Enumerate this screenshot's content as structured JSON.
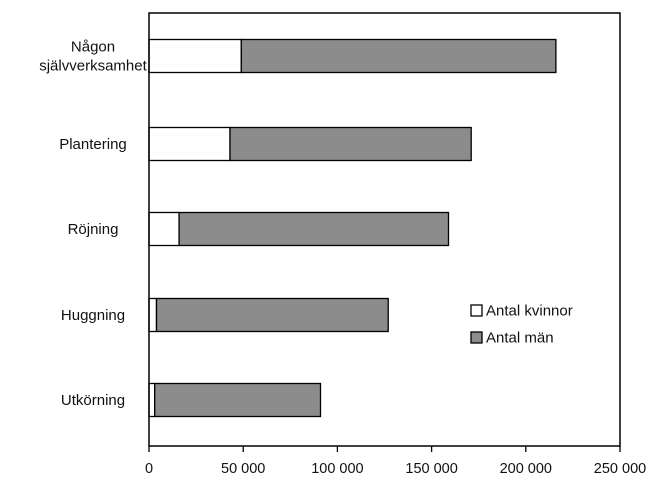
{
  "chart_data": {
    "type": "bar",
    "orientation": "horizontal",
    "stacked": true,
    "categories": [
      [
        "Någon",
        "självverksamhet"
      ],
      [
        "Plantering"
      ],
      [
        "Röjning"
      ],
      [
        "Huggning"
      ],
      [
        "Utkörning"
      ]
    ],
    "series": [
      {
        "name": "Antal kvinnor",
        "color": "#ffffff",
        "values": [
          49000,
          43000,
          16000,
          4000,
          3000
        ]
      },
      {
        "name": "Antal män",
        "color": "#8c8c8c",
        "values": [
          167000,
          128000,
          143000,
          123000,
          88000
        ]
      }
    ],
    "xlim": [
      0,
      250000
    ],
    "xticks": [
      {
        "value": 0,
        "label": "0"
      },
      {
        "value": 50000,
        "label": "50 000"
      },
      {
        "value": 100000,
        "label": "100 000"
      },
      {
        "value": 150000,
        "label": "150 000"
      },
      {
        "value": 200000,
        "label": "200 000"
      },
      {
        "value": 250000,
        "label": "250 000"
      }
    ],
    "legend_position": "right",
    "grid": false
  }
}
